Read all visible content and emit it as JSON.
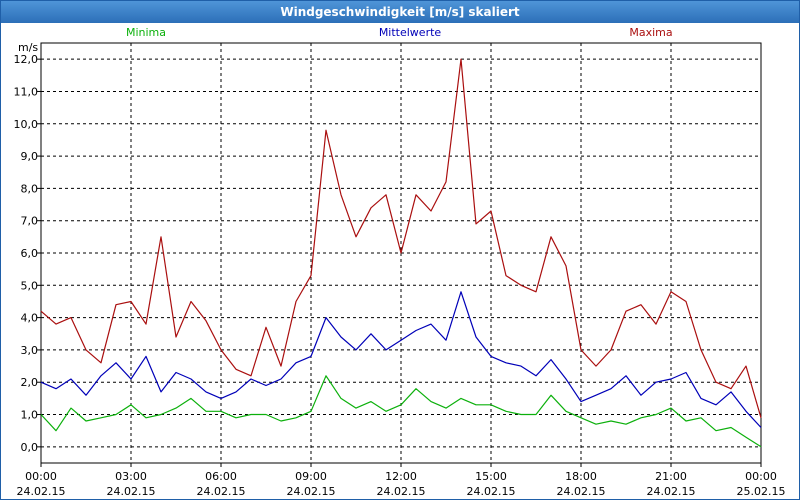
{
  "window": {
    "title": "Windgeschwindigkeit [m/s] skaliert"
  },
  "colors": {
    "min": "#0cb00c",
    "mean": "#0000b8",
    "max": "#aa0f0f",
    "grid": "#000000"
  },
  "chart_data": {
    "type": "line",
    "title": "",
    "ylabel": "m/s",
    "xlabel": "",
    "ylim": [
      -0.5,
      12.5
    ],
    "xlim": [
      0,
      24
    ],
    "grid": true,
    "legend_position": "top",
    "y_ticks": [
      "0,0",
      "1,0",
      "2,0",
      "3,0",
      "4,0",
      "5,0",
      "6,0",
      "7,0",
      "8,0",
      "9,0",
      "10,0",
      "11,0",
      "12,0"
    ],
    "x_ticks": [
      {
        "time": "00:00",
        "date": "24.02.15"
      },
      {
        "time": "03:00",
        "date": "24.02.15"
      },
      {
        "time": "06:00",
        "date": "24.02.15"
      },
      {
        "time": "09:00",
        "date": "24.02.15"
      },
      {
        "time": "12:00",
        "date": "24.02.15"
      },
      {
        "time": "15:00",
        "date": "24.02.15"
      },
      {
        "time": "18:00",
        "date": "24.02.15"
      },
      {
        "time": "21:00",
        "date": "24.02.15"
      },
      {
        "time": "00:00",
        "date": "25.02.15"
      }
    ],
    "x": [
      0,
      0.5,
      1,
      1.5,
      2,
      2.5,
      3,
      3.5,
      4,
      4.5,
      5,
      5.5,
      6,
      6.5,
      7,
      7.5,
      8,
      8.5,
      9,
      9.5,
      10,
      10.5,
      11,
      11.5,
      12,
      12.5,
      13,
      13.5,
      14,
      14.5,
      15,
      15.5,
      16,
      16.5,
      17,
      17.5,
      18,
      18.5,
      19,
      19.5,
      20,
      20.5,
      21,
      21.5,
      22,
      22.5,
      23,
      23.5,
      24
    ],
    "series": [
      {
        "name": "Minima",
        "key": "min",
        "values": [
          1.0,
          0.5,
          1.2,
          0.8,
          0.9,
          1.0,
          1.3,
          0.9,
          1.0,
          1.2,
          1.5,
          1.1,
          1.1,
          0.9,
          1.0,
          1.0,
          0.8,
          0.9,
          1.1,
          2.2,
          1.5,
          1.2,
          1.4,
          1.1,
          1.3,
          1.8,
          1.4,
          1.2,
          1.5,
          1.3,
          1.3,
          1.1,
          1.0,
          1.0,
          1.6,
          1.1,
          0.9,
          0.7,
          0.8,
          0.7,
          0.9,
          1.0,
          1.2,
          0.8,
          0.9,
          0.5,
          0.6,
          0.3,
          0.0
        ]
      },
      {
        "name": "Mittelwerte",
        "key": "mean",
        "values": [
          2.0,
          1.8,
          2.1,
          1.6,
          2.2,
          2.6,
          2.1,
          2.8,
          1.7,
          2.3,
          2.1,
          1.7,
          1.5,
          1.7,
          2.1,
          1.9,
          2.1,
          2.6,
          2.8,
          4.0,
          3.4,
          3.0,
          3.5,
          3.0,
          3.3,
          3.6,
          3.8,
          3.3,
          4.8,
          3.4,
          2.8,
          2.6,
          2.5,
          2.2,
          2.7,
          2.1,
          1.4,
          1.6,
          1.8,
          2.2,
          1.6,
          2.0,
          2.1,
          2.3,
          1.5,
          1.3,
          1.7,
          1.1,
          0.6
        ]
      },
      {
        "name": "Maxima",
        "key": "max",
        "values": [
          4.2,
          3.8,
          4.0,
          3.0,
          2.6,
          4.4,
          4.5,
          3.8,
          6.5,
          3.4,
          4.5,
          3.9,
          3.0,
          2.4,
          2.2,
          3.7,
          2.5,
          4.5,
          5.3,
          9.8,
          7.8,
          6.5,
          7.4,
          7.8,
          6.0,
          7.8,
          7.3,
          8.2,
          12.0,
          6.9,
          7.3,
          5.3,
          5.0,
          4.8,
          6.5,
          5.6,
          3.0,
          2.5,
          3.0,
          4.2,
          4.4,
          3.8,
          4.8,
          4.5,
          3.0,
          2.0,
          1.8,
          2.5,
          0.9
        ]
      }
    ]
  }
}
